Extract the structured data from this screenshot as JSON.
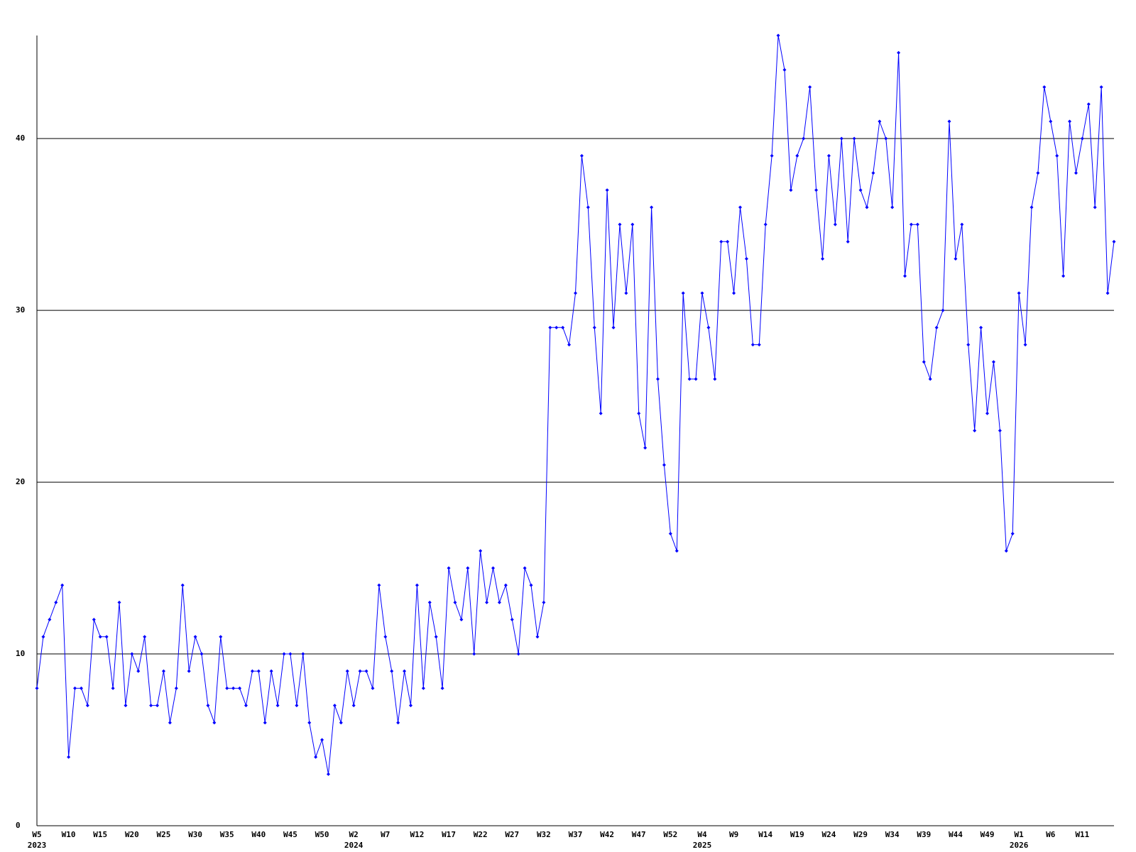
{
  "chart_data": {
    "type": "line",
    "categories": [
      "W5",
      null,
      null,
      null,
      null,
      "W10",
      null,
      null,
      null,
      null,
      "W15",
      null,
      null,
      null,
      null,
      "W20",
      null,
      null,
      null,
      null,
      "W25",
      null,
      null,
      null,
      null,
      "W30",
      null,
      null,
      null,
      null,
      "W35",
      null,
      null,
      null,
      null,
      "W40",
      null,
      null,
      null,
      null,
      "W45",
      null,
      null,
      null,
      null,
      "W50",
      null,
      null,
      null,
      null,
      "W2",
      null,
      null,
      null,
      null,
      "W7",
      null,
      null,
      null,
      null,
      "W12",
      null,
      null,
      null,
      null,
      "W17",
      null,
      null,
      null,
      null,
      "W22",
      null,
      null,
      null,
      null,
      "W27",
      null,
      null,
      null,
      null,
      "W32",
      null,
      null,
      null,
      null,
      "W37",
      null,
      null,
      null,
      null,
      "W42",
      null,
      null,
      null,
      null,
      "W47",
      null,
      null,
      null,
      null,
      "W52",
      null,
      null,
      null,
      null,
      "W4",
      null,
      null,
      null,
      null,
      "W9",
      null,
      null,
      null,
      null,
      "W14",
      null,
      null,
      null,
      null,
      "W19",
      null,
      null,
      null,
      null,
      "W24",
      null,
      null,
      null,
      null,
      "W29",
      null,
      null,
      null,
      null,
      "W34",
      null,
      null,
      null,
      null,
      "W39",
      null,
      null,
      null,
      null,
      "W44",
      null,
      null,
      null,
      null,
      "W49",
      null,
      null,
      null,
      null,
      "W1",
      null,
      null,
      null,
      null,
      "W6",
      null,
      null,
      null,
      null,
      "W11",
      null,
      null,
      null,
      null,
      null
    ],
    "years": [
      "2023",
      null,
      null,
      null,
      null,
      null,
      null,
      null,
      null,
      null,
      null,
      null,
      null,
      null,
      null,
      null,
      null,
      null,
      null,
      null,
      null,
      null,
      null,
      null,
      null,
      null,
      null,
      null,
      null,
      null,
      null,
      null,
      null,
      null,
      null,
      null,
      null,
      null,
      null,
      null,
      null,
      null,
      null,
      null,
      null,
      null,
      null,
      null,
      null,
      null,
      "2024",
      null,
      null,
      null,
      null,
      null,
      null,
      null,
      null,
      null,
      null,
      null,
      null,
      null,
      null,
      null,
      null,
      null,
      null,
      null,
      null,
      null,
      null,
      null,
      null,
      null,
      null,
      null,
      null,
      null,
      null,
      null,
      null,
      null,
      null,
      null,
      null,
      null,
      null,
      null,
      null,
      null,
      null,
      null,
      null,
      null,
      null,
      null,
      null,
      null,
      null,
      null,
      null,
      null,
      null,
      "2025",
      null,
      null,
      null,
      null,
      null,
      null,
      null,
      null,
      null,
      null,
      null,
      null,
      null,
      null,
      null,
      null,
      null,
      null,
      null,
      null,
      null,
      null,
      null,
      null,
      null,
      null,
      null,
      null,
      null,
      null,
      null,
      null,
      null,
      null,
      null,
      null,
      null,
      null,
      null,
      null,
      null,
      null,
      null,
      null,
      null,
      null,
      null,
      null,
      null,
      "2026",
      null,
      null,
      null,
      null,
      null,
      null,
      null,
      null,
      null,
      null,
      null,
      null,
      null,
      null,
      null
    ],
    "series": [
      {
        "color": "#0000ff",
        "values": [
          8,
          11,
          12,
          13,
          14,
          4,
          8,
          8,
          7,
          12,
          11,
          11,
          8,
          13,
          7,
          10,
          9,
          11,
          7,
          7,
          9,
          6,
          8,
          14,
          9,
          11,
          10,
          7,
          6,
          11,
          8,
          8,
          8,
          7,
          9,
          9,
          6,
          9,
          7,
          10,
          10,
          7,
          10,
          6,
          4,
          5,
          3,
          7,
          6,
          9,
          7,
          9,
          9,
          8,
          14,
          11,
          9,
          6,
          9,
          7,
          14,
          8,
          13,
          11,
          8,
          15,
          13,
          12,
          15,
          10,
          16,
          13,
          15,
          13,
          14,
          12,
          10,
          15,
          14,
          11,
          13,
          29,
          29,
          29,
          28,
          31,
          39,
          36,
          29,
          24,
          37,
          29,
          35,
          31,
          35,
          24,
          22,
          36,
          26,
          21,
          17,
          16,
          31,
          26,
          26,
          31,
          29,
          26,
          34,
          34,
          31,
          36,
          33,
          28,
          28,
          35,
          39,
          46,
          44,
          37,
          39,
          40,
          43,
          37,
          33,
          39,
          35,
          40,
          34,
          40,
          37,
          36,
          38,
          41,
          40,
          36,
          45,
          32,
          35,
          35,
          27,
          26,
          29,
          30,
          41,
          33,
          35,
          28,
          23,
          29,
          24,
          27,
          23,
          16,
          17,
          31,
          28,
          36,
          38,
          43,
          41,
          39,
          32,
          41,
          38,
          40,
          42,
          36,
          43,
          31,
          34
        ]
      }
    ],
    "ylim": [
      0,
      46
    ],
    "yticks": [
      0,
      10,
      20,
      30,
      40
    ],
    "grid": true
  }
}
